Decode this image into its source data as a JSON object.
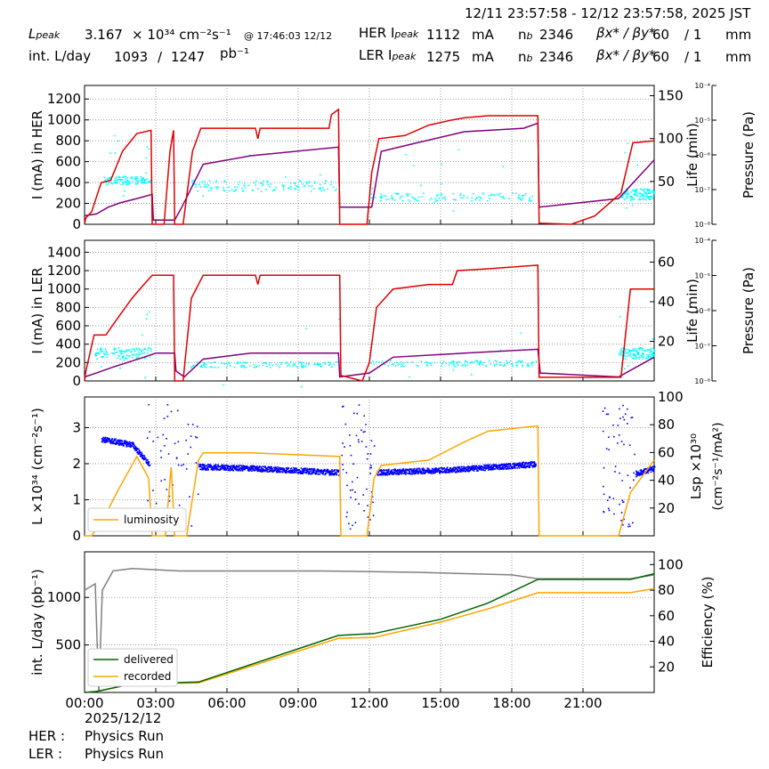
{
  "header": {
    "time_range": "12/11 23:57:58 - 12/12 23:57:58, 2025 JST",
    "lpeak_label": "L",
    "lpeak_sub": "peak",
    "lpeak_value": "3.167",
    "lpeak_unit": "× 10³⁴ cm⁻²s⁻¹",
    "lpeak_time": "@ 17:46:03 12/12",
    "intl_label": "int. L/day",
    "intl_value1": "1093",
    "intl_sep": "/",
    "intl_value2": "1247",
    "intl_unit": "pb⁻¹",
    "her_label": "HER I",
    "her_sub": "peak",
    "her_value": "1112",
    "her_unit": "mA",
    "her_nb_label": "n",
    "her_nb_sub": "b",
    "her_nb": "2346",
    "her_beta_label": "βx* / βy*",
    "her_beta1": "60",
    "her_beta2": "/ 1",
    "her_beta_unit": "mm",
    "ler_label": "LER I",
    "ler_sub": "peak",
    "ler_value": "1275",
    "ler_unit": "mA",
    "ler_nb_label": "n",
    "ler_nb_sub": "b",
    "ler_nb": "2346",
    "ler_beta_label": "βx* / βy*",
    "ler_beta1": "60",
    "ler_beta2": "/ 1",
    "ler_beta_unit": "mm"
  },
  "footer": {
    "date": "2025/12/12",
    "her_mode_label": "HER :",
    "her_mode": "Physics Run",
    "ler_mode_label": "LER :",
    "ler_mode": "Physics Run"
  },
  "colors": {
    "current": "#e00000",
    "life": "#800080",
    "pressure": "#00ffff",
    "lumi": "#ffa500",
    "lsp": "#0000ff",
    "delivered": "#006400",
    "recorded": "#ffa500",
    "efficiency": "#808080",
    "grid": "#888888"
  },
  "chart_data": [
    {
      "type": "line",
      "panel": "her",
      "ylabel": "I (mA) in HER",
      "y2label": "Life (min)",
      "y3label": "Pressure (Pa)",
      "xlim": [
        0,
        24
      ],
      "ylim": [
        0,
        1330
      ],
      "yticks": [
        "0",
        "200",
        "400",
        "600",
        "800",
        "1000",
        "1200"
      ],
      "y2lim": [
        0,
        162
      ],
      "y2ticks": [
        "50",
        "100",
        "150"
      ],
      "y3ticks": [
        "10⁻⁸",
        "10⁻⁷",
        "10⁻⁶",
        "10⁻⁵",
        "10⁻⁴"
      ],
      "current": [
        [
          0,
          0
        ],
        [
          0.05,
          60
        ],
        [
          0.3,
          120
        ],
        [
          0.7,
          400
        ],
        [
          1.1,
          420
        ],
        [
          1.6,
          700
        ],
        [
          2.2,
          870
        ],
        [
          2.8,
          900
        ],
        [
          2.85,
          0
        ],
        [
          3.35,
          0
        ],
        [
          3.6,
          700
        ],
        [
          3.75,
          900
        ],
        [
          3.8,
          0
        ],
        [
          4.15,
          0
        ],
        [
          4.55,
          700
        ],
        [
          4.9,
          920
        ],
        [
          7.2,
          920
        ],
        [
          7.3,
          820
        ],
        [
          7.4,
          920
        ],
        [
          10.3,
          920
        ],
        [
          10.4,
          1050
        ],
        [
          10.7,
          1100
        ],
        [
          10.75,
          0
        ],
        [
          11.9,
          0
        ],
        [
          12.1,
          500
        ],
        [
          12.4,
          820
        ],
        [
          13.5,
          850
        ],
        [
          14.5,
          950
        ],
        [
          15.5,
          1000
        ],
        [
          16,
          1020
        ],
        [
          17,
          1040
        ],
        [
          19.1,
          1040
        ],
        [
          19.15,
          10
        ],
        [
          20.5,
          0
        ],
        [
          21.5,
          80
        ],
        [
          22.6,
          300
        ],
        [
          23.1,
          780
        ],
        [
          24,
          800
        ]
      ],
      "life": [
        [
          0,
          10
        ],
        [
          0.5,
          12
        ],
        [
          1,
          20
        ],
        [
          1.5,
          25
        ],
        [
          2.2,
          30
        ],
        [
          2.85,
          35
        ],
        [
          2.9,
          5
        ],
        [
          3.8,
          5
        ],
        [
          4.1,
          20
        ],
        [
          5,
          70
        ],
        [
          7,
          80
        ],
        [
          10.7,
          90
        ],
        [
          10.75,
          20
        ],
        [
          12.1,
          20
        ],
        [
          12.5,
          85
        ],
        [
          14,
          95
        ],
        [
          16,
          108
        ],
        [
          18.5,
          112
        ],
        [
          19.1,
          118
        ],
        [
          19.15,
          20
        ],
        [
          22.5,
          30
        ],
        [
          24,
          75
        ]
      ]
    },
    {
      "type": "line",
      "panel": "ler",
      "ylabel": "I (mA) in LER",
      "y2label": "Life (min)",
      "y3label": "Pressure (Pa)",
      "xlim": [
        0,
        24
      ],
      "ylim": [
        0,
        1530
      ],
      "yticks": [
        "0",
        "200",
        "400",
        "600",
        "800",
        "1000",
        "1200",
        "1400"
      ],
      "y2lim": [
        0,
        71
      ],
      "y2ticks": [
        "20",
        "40",
        "60"
      ],
      "y3ticks": [
        "10⁻⁸",
        "10⁻⁷",
        "10⁻⁶",
        "10⁻⁵",
        "10⁻⁴"
      ],
      "current": [
        [
          0,
          0
        ],
        [
          0.05,
          100
        ],
        [
          0.4,
          500
        ],
        [
          0.9,
          500
        ],
        [
          1.3,
          650
        ],
        [
          2,
          900
        ],
        [
          2.5,
          1050
        ],
        [
          2.85,
          1150
        ],
        [
          3.75,
          1150
        ],
        [
          3.8,
          0
        ],
        [
          4.15,
          0
        ],
        [
          4.5,
          900
        ],
        [
          5,
          1150
        ],
        [
          7.2,
          1150
        ],
        [
          7.3,
          1050
        ],
        [
          7.4,
          1150
        ],
        [
          10.75,
          1150
        ],
        [
          10.8,
          60
        ],
        [
          11.7,
          0
        ],
        [
          12,
          200
        ],
        [
          12.3,
          800
        ],
        [
          13,
          1000
        ],
        [
          14.5,
          1050
        ],
        [
          15.5,
          1050
        ],
        [
          15.7,
          1200
        ],
        [
          17,
          1220
        ],
        [
          19.1,
          1260
        ],
        [
          19.15,
          40
        ],
        [
          22.6,
          40
        ],
        [
          23,
          1000
        ],
        [
          24,
          1000
        ]
      ],
      "life": [
        [
          0,
          2
        ],
        [
          0.5,
          4
        ],
        [
          1.2,
          7
        ],
        [
          2.5,
          12
        ],
        [
          3,
          14
        ],
        [
          3.8,
          14
        ],
        [
          3.85,
          5
        ],
        [
          4.2,
          2
        ],
        [
          5,
          11
        ],
        [
          7,
          14
        ],
        [
          10.7,
          14
        ],
        [
          10.75,
          2
        ],
        [
          12,
          4
        ],
        [
          13,
          12
        ],
        [
          16,
          14
        ],
        [
          19.1,
          16
        ],
        [
          19.2,
          4
        ],
        [
          22.5,
          2
        ],
        [
          24,
          12
        ]
      ]
    },
    {
      "type": "line",
      "panel": "lumi",
      "ylabel": "L ×10³⁴ (cm⁻²s⁻¹)",
      "y2label": "Lsp ×10³⁰",
      "y2unit": "(cm⁻²s⁻¹/mA²)",
      "legend": "luminosity",
      "legend_loc": "lower-left",
      "xlim": [
        0,
        24
      ],
      "ylim": [
        0,
        3.85
      ],
      "yticks": [
        "0",
        "1",
        "2",
        "3"
      ],
      "y2lim": [
        0,
        100
      ],
      "y2ticks": [
        "20",
        "40",
        "60",
        "80",
        "100"
      ],
      "luminosity": [
        [
          0,
          0
        ],
        [
          0.3,
          0
        ],
        [
          0.9,
          0.6
        ],
        [
          1.4,
          1.25
        ],
        [
          2.2,
          2.2
        ],
        [
          2.7,
          1.6
        ],
        [
          2.85,
          0
        ],
        [
          3.4,
          0
        ],
        [
          3.65,
          1.9
        ],
        [
          3.8,
          0
        ],
        [
          4.3,
          0
        ],
        [
          4.8,
          2.1
        ],
        [
          5,
          2.3
        ],
        [
          7,
          2.3
        ],
        [
          10.75,
          2.2
        ],
        [
          10.8,
          0
        ],
        [
          11.9,
          0
        ],
        [
          12.2,
          1.6
        ],
        [
          12.5,
          1.95
        ],
        [
          14.5,
          2.1
        ],
        [
          16,
          2.6
        ],
        [
          17,
          2.9
        ],
        [
          19.1,
          3.05
        ],
        [
          19.15,
          0
        ],
        [
          22.5,
          0
        ],
        [
          23,
          1.2
        ],
        [
          24,
          2.1
        ]
      ],
      "lsp_segments": [
        [
          [
            0.7,
            70
          ],
          [
            2,
            66
          ],
          [
            2.7,
            52
          ]
        ],
        [
          [
            4.8,
            50
          ],
          [
            7,
            49
          ],
          [
            10.7,
            46
          ]
        ],
        [
          [
            12.3,
            46
          ],
          [
            15.5,
            48
          ],
          [
            19,
            52
          ]
        ],
        [
          [
            23.2,
            45
          ],
          [
            24,
            49
          ]
        ]
      ]
    },
    {
      "type": "line",
      "panel": "intlumi",
      "ylabel": "int. L/day (pb⁻¹)",
      "y2label": "Efficiency (%)",
      "legend": [
        "delivered",
        "recorded"
      ],
      "legend_loc": "lower-left",
      "xlim": [
        0,
        24
      ],
      "xticks": [
        "00:00",
        "03:00",
        "06:00",
        "09:00",
        "12:00",
        "15:00",
        "18:00",
        "21:00"
      ],
      "ylim": [
        0,
        1480
      ],
      "yticks": [
        "500",
        "1000"
      ],
      "y2lim": [
        0,
        110
      ],
      "y2ticks": [
        "20",
        "40",
        "60",
        "80",
        "100"
      ],
      "delivered": [
        [
          0,
          0
        ],
        [
          0.5,
          10
        ],
        [
          2,
          90
        ],
        [
          4.8,
          110
        ],
        [
          10.7,
          600
        ],
        [
          12.2,
          620
        ],
        [
          15,
          770
        ],
        [
          17,
          940
        ],
        [
          19.1,
          1190
        ],
        [
          23,
          1190
        ],
        [
          24,
          1250
        ]
      ],
      "recorded": [
        [
          0,
          0
        ],
        [
          0.5,
          10
        ],
        [
          2,
          90
        ],
        [
          4.8,
          100
        ],
        [
          10.7,
          570
        ],
        [
          12.2,
          580
        ],
        [
          15,
          740
        ],
        [
          17,
          880
        ],
        [
          19.1,
          1050
        ],
        [
          23,
          1050
        ],
        [
          24,
          1093
        ]
      ],
      "efficiency": [
        [
          0,
          80
        ],
        [
          0.45,
          85
        ],
        [
          0.6,
          0
        ],
        [
          0.75,
          80
        ],
        [
          1.2,
          95
        ],
        [
          2,
          97
        ],
        [
          4,
          95
        ],
        [
          10,
          95
        ],
        [
          14,
          94
        ],
        [
          18,
          92
        ],
        [
          19.1,
          89
        ],
        [
          23,
          89
        ],
        [
          24,
          92
        ]
      ]
    }
  ]
}
